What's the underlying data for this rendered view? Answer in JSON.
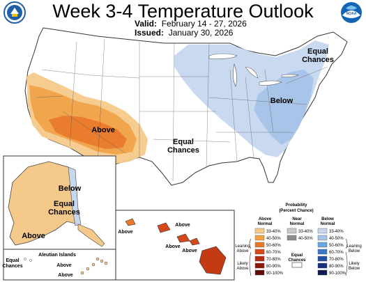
{
  "title": "Week 3-4 Temperature Outlook",
  "valid_label": "Valid:",
  "valid_value": "February 14 - 27, 2026",
  "issued_label": "Issued:",
  "issued_value": "January 30, 2026",
  "logos": {
    "left": {
      "icon": "commerce-seal-icon",
      "color": "#1f5fa8"
    },
    "right": {
      "icon": "noaa-logo-icon",
      "text": "NOAA",
      "color": "#1464b4"
    }
  },
  "map_labels": {
    "above_west": "Above",
    "equal_chances_central": [
      "Equal",
      "Chances"
    ],
    "equal_chances_ne": [
      "Equal",
      "Chances"
    ],
    "below_east": "Below",
    "alaska_below": "Below",
    "alaska_equal_chances": [
      "Equal",
      "Chances"
    ],
    "alaska_above": "Above",
    "aleutian_equal_chances": [
      "Equal",
      "Chances"
    ],
    "aleutian_islands": "Aleutian Islands",
    "aleutian_above_1": "Above",
    "aleutian_above_2": "Above",
    "hawaii_above_1": "Above",
    "hawaii_above_2": "Above",
    "hawaii_above_3": "Above",
    "hawaii_above_4": "Above"
  },
  "legend": {
    "title": [
      "Probability",
      "(Percent Chance)"
    ],
    "columns": [
      {
        "header": [
          "Above",
          "Normal"
        ],
        "colors": [
          "#f5c98a",
          "#f0a24a",
          "#e8782a",
          "#d4481a",
          "#b52a10",
          "#8c1a0a",
          "#5e0f05"
        ]
      },
      {
        "header": [
          "Near",
          "Normal"
        ],
        "colors": [
          "#c8c8c8",
          "#8c8c8c"
        ]
      },
      {
        "header": [
          "Below",
          "Normal"
        ],
        "colors": [
          "#c6d7ee",
          "#a6c4e8",
          "#6aa6e0",
          "#3b78c8",
          "#244fa4",
          "#18307c",
          "#0c1a4e"
        ]
      }
    ],
    "ranges": [
      "33-40%",
      "40-50%",
      "50-60%",
      "60-70%",
      "70-80%",
      "80-90%",
      "90-100%"
    ],
    "near_ranges": [
      "33-40%",
      "40-50%"
    ],
    "equal_chances": [
      "Equal",
      "Chances"
    ],
    "leaning_above": [
      "Leaning",
      "Above"
    ],
    "likely_above": [
      "Likely",
      "Above"
    ],
    "leaning_below": [
      "Leaning",
      "Below"
    ],
    "likely_below": [
      "Likely",
      "Below"
    ]
  }
}
